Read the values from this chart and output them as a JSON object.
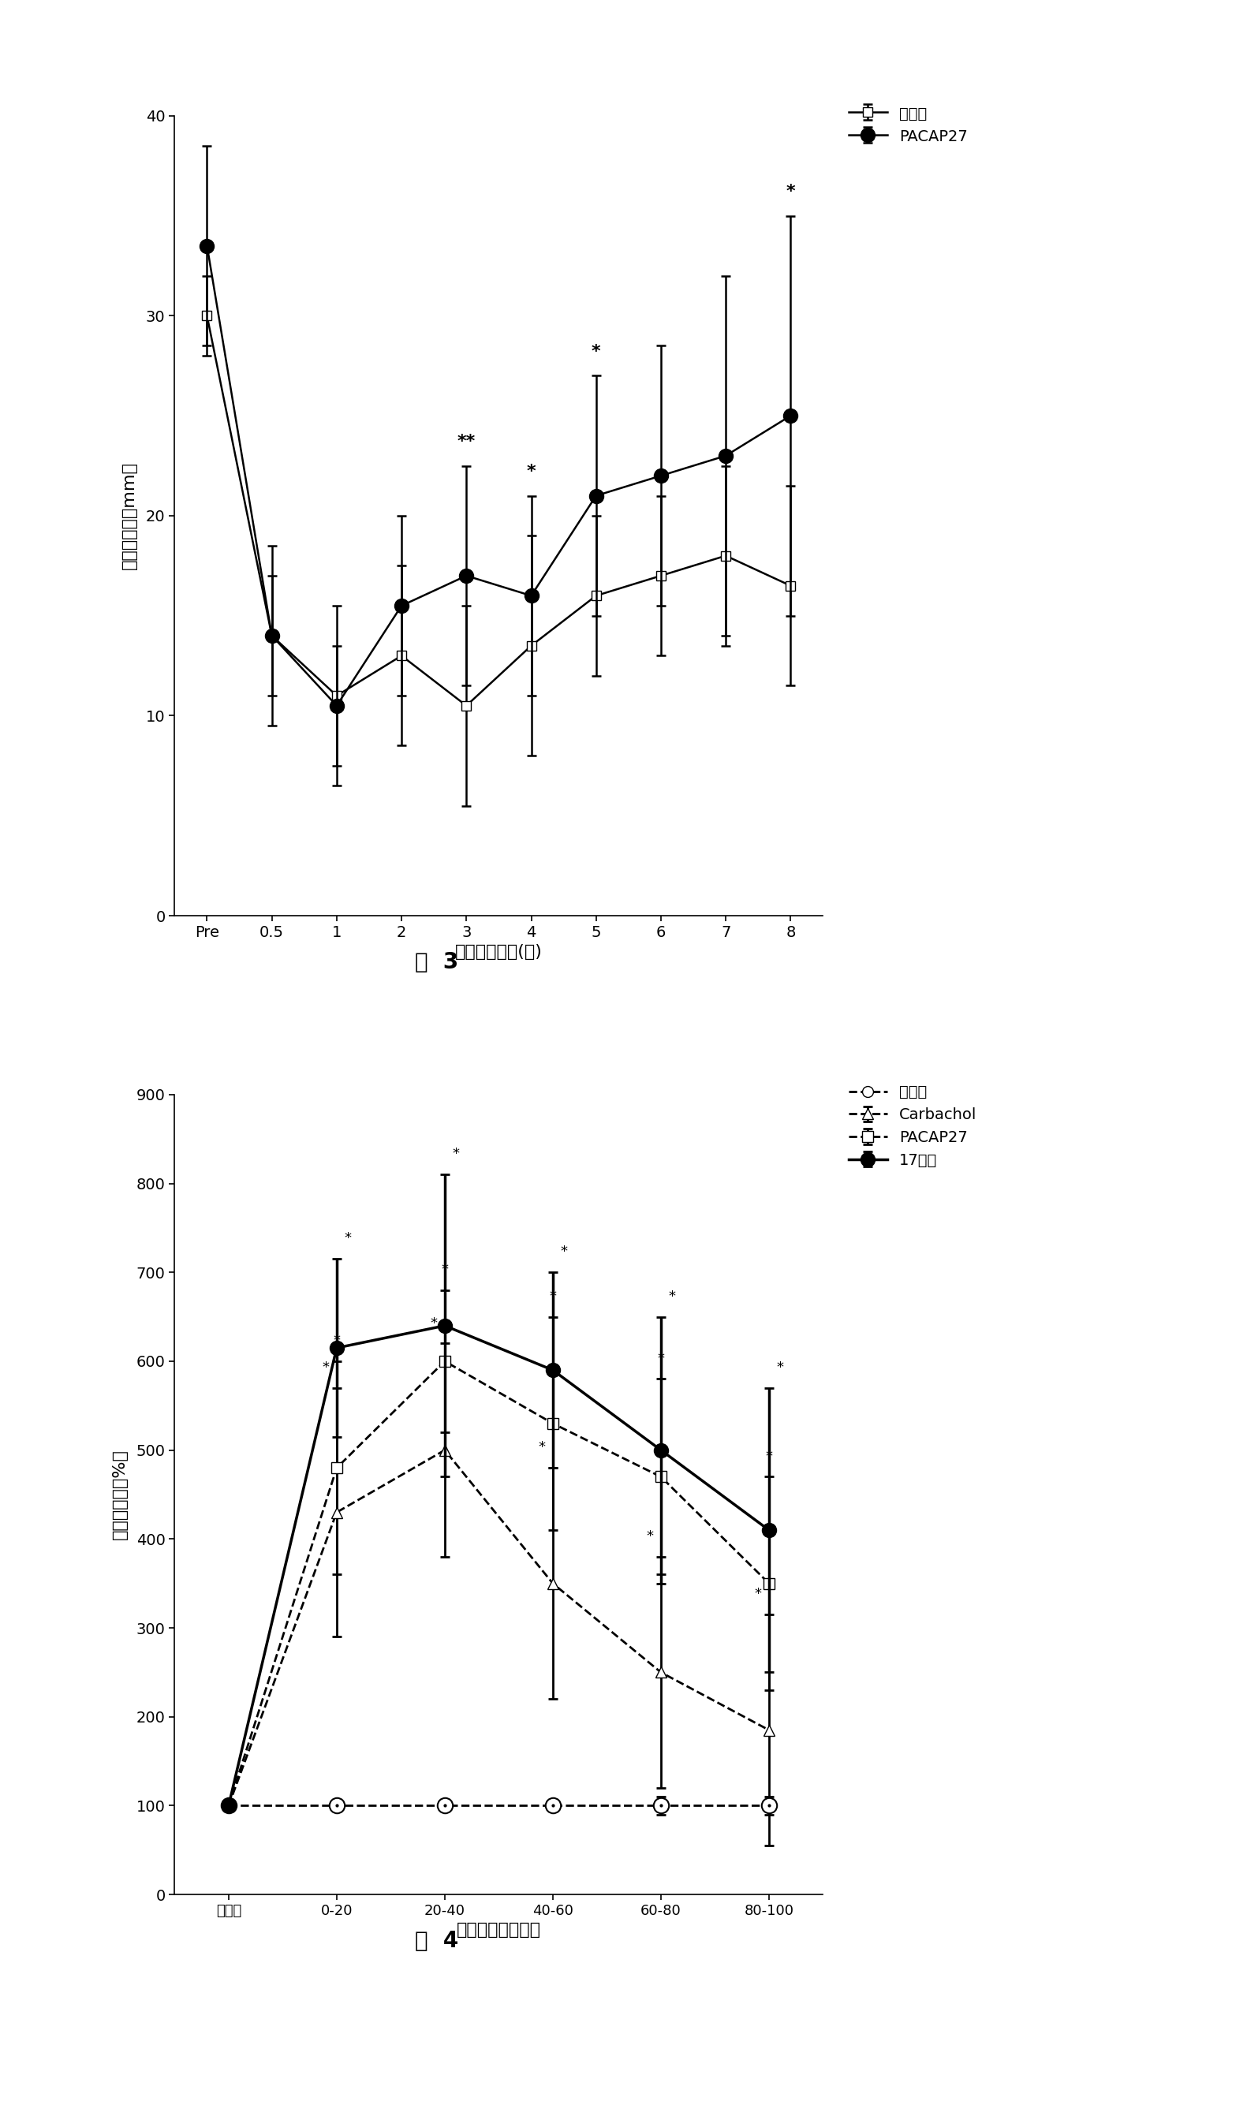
{
  "fig3": {
    "title": "图  3",
    "xlabel": "手术后的时间(周)",
    "ylabel": "角膜敏感性（mm）",
    "ylim": [
      0,
      40
    ],
    "yticks": [
      0,
      10,
      20,
      30,
      40
    ],
    "xtick_labels": [
      "Pre",
      "0.5",
      "1",
      "2",
      "3",
      "4",
      "5",
      "6",
      "7",
      "8"
    ],
    "x_positions": [
      0,
      1,
      2,
      3,
      4,
      5,
      6,
      7,
      8,
      9
    ],
    "control_y": [
      30.0,
      14.0,
      11.0,
      13.0,
      10.5,
      13.5,
      16.0,
      17.0,
      18.0,
      16.5
    ],
    "control_yerr_upper": [
      2.0,
      4.5,
      4.5,
      4.5,
      5.0,
      5.5,
      4.0,
      4.0,
      4.5,
      5.0
    ],
    "control_yerr_lower": [
      2.0,
      4.5,
      4.5,
      4.5,
      5.0,
      5.5,
      4.0,
      4.0,
      4.5,
      5.0
    ],
    "pacap_y": [
      33.5,
      14.0,
      10.5,
      15.5,
      17.0,
      16.0,
      21.0,
      22.0,
      23.0,
      25.0
    ],
    "pacap_yerr_upper": [
      5.0,
      3.0,
      3.0,
      4.5,
      5.5,
      5.0,
      6.0,
      6.5,
      9.0,
      10.0
    ],
    "pacap_yerr_lower": [
      5.0,
      3.0,
      3.0,
      4.5,
      5.5,
      5.0,
      6.0,
      6.5,
      9.0,
      10.0
    ],
    "sig_labels_pacap": [
      "",
      "",
      "",
      "",
      "**",
      "*",
      "*",
      "",
      "",
      "*"
    ],
    "legend_control": "对照组",
    "legend_pacap": "PACAP27"
  },
  "fig4": {
    "title": "图  4",
    "xlabel": "温育时间（分钟）",
    "ylabel": "蛋白分泌率（%）",
    "ylim": [
      0,
      900
    ],
    "yticks": [
      0,
      100,
      200,
      300,
      400,
      500,
      600,
      700,
      800,
      900
    ],
    "xtick_labels": [
      "初始值",
      "0-20",
      "20-40",
      "40-60",
      "60-80",
      "80-100"
    ],
    "x_positions": [
      0,
      1,
      2,
      3,
      4,
      5
    ],
    "control_y": [
      100,
      100,
      100,
      100,
      100,
      100
    ],
    "control_yerr_upper": [
      0,
      5,
      5,
      5,
      10,
      10
    ],
    "control_yerr_lower": [
      0,
      5,
      5,
      5,
      10,
      10
    ],
    "carbachol_y": [
      100,
      430,
      500,
      350,
      250,
      185
    ],
    "carbachol_yerr_upper": [
      0,
      140,
      120,
      130,
      130,
      130
    ],
    "carbachol_yerr_lower": [
      0,
      140,
      120,
      130,
      130,
      130
    ],
    "pacap_y": [
      100,
      480,
      600,
      530,
      470,
      350
    ],
    "pacap_yerr_upper": [
      0,
      120,
      80,
      120,
      110,
      120
    ],
    "pacap_yerr_lower": [
      0,
      120,
      80,
      120,
      110,
      120
    ],
    "peptide17_y": [
      100,
      615,
      640,
      590,
      500,
      410
    ],
    "peptide17_yerr_upper": [
      0,
      100,
      170,
      110,
      150,
      160
    ],
    "peptide17_yerr_lower": [
      0,
      100,
      170,
      110,
      150,
      160
    ],
    "sig_carbachol": [
      false,
      true,
      true,
      true,
      true,
      true
    ],
    "sig_pacap": [
      false,
      true,
      true,
      true,
      true,
      true
    ],
    "sig_peptide17": [
      false,
      true,
      true,
      true,
      true,
      true
    ],
    "legend_control": "对照组",
    "legend_carbachol": "Carbachol",
    "legend_pacap": "PACAP27",
    "legend_peptide17": "17号肽"
  },
  "bg_color": "#ffffff"
}
